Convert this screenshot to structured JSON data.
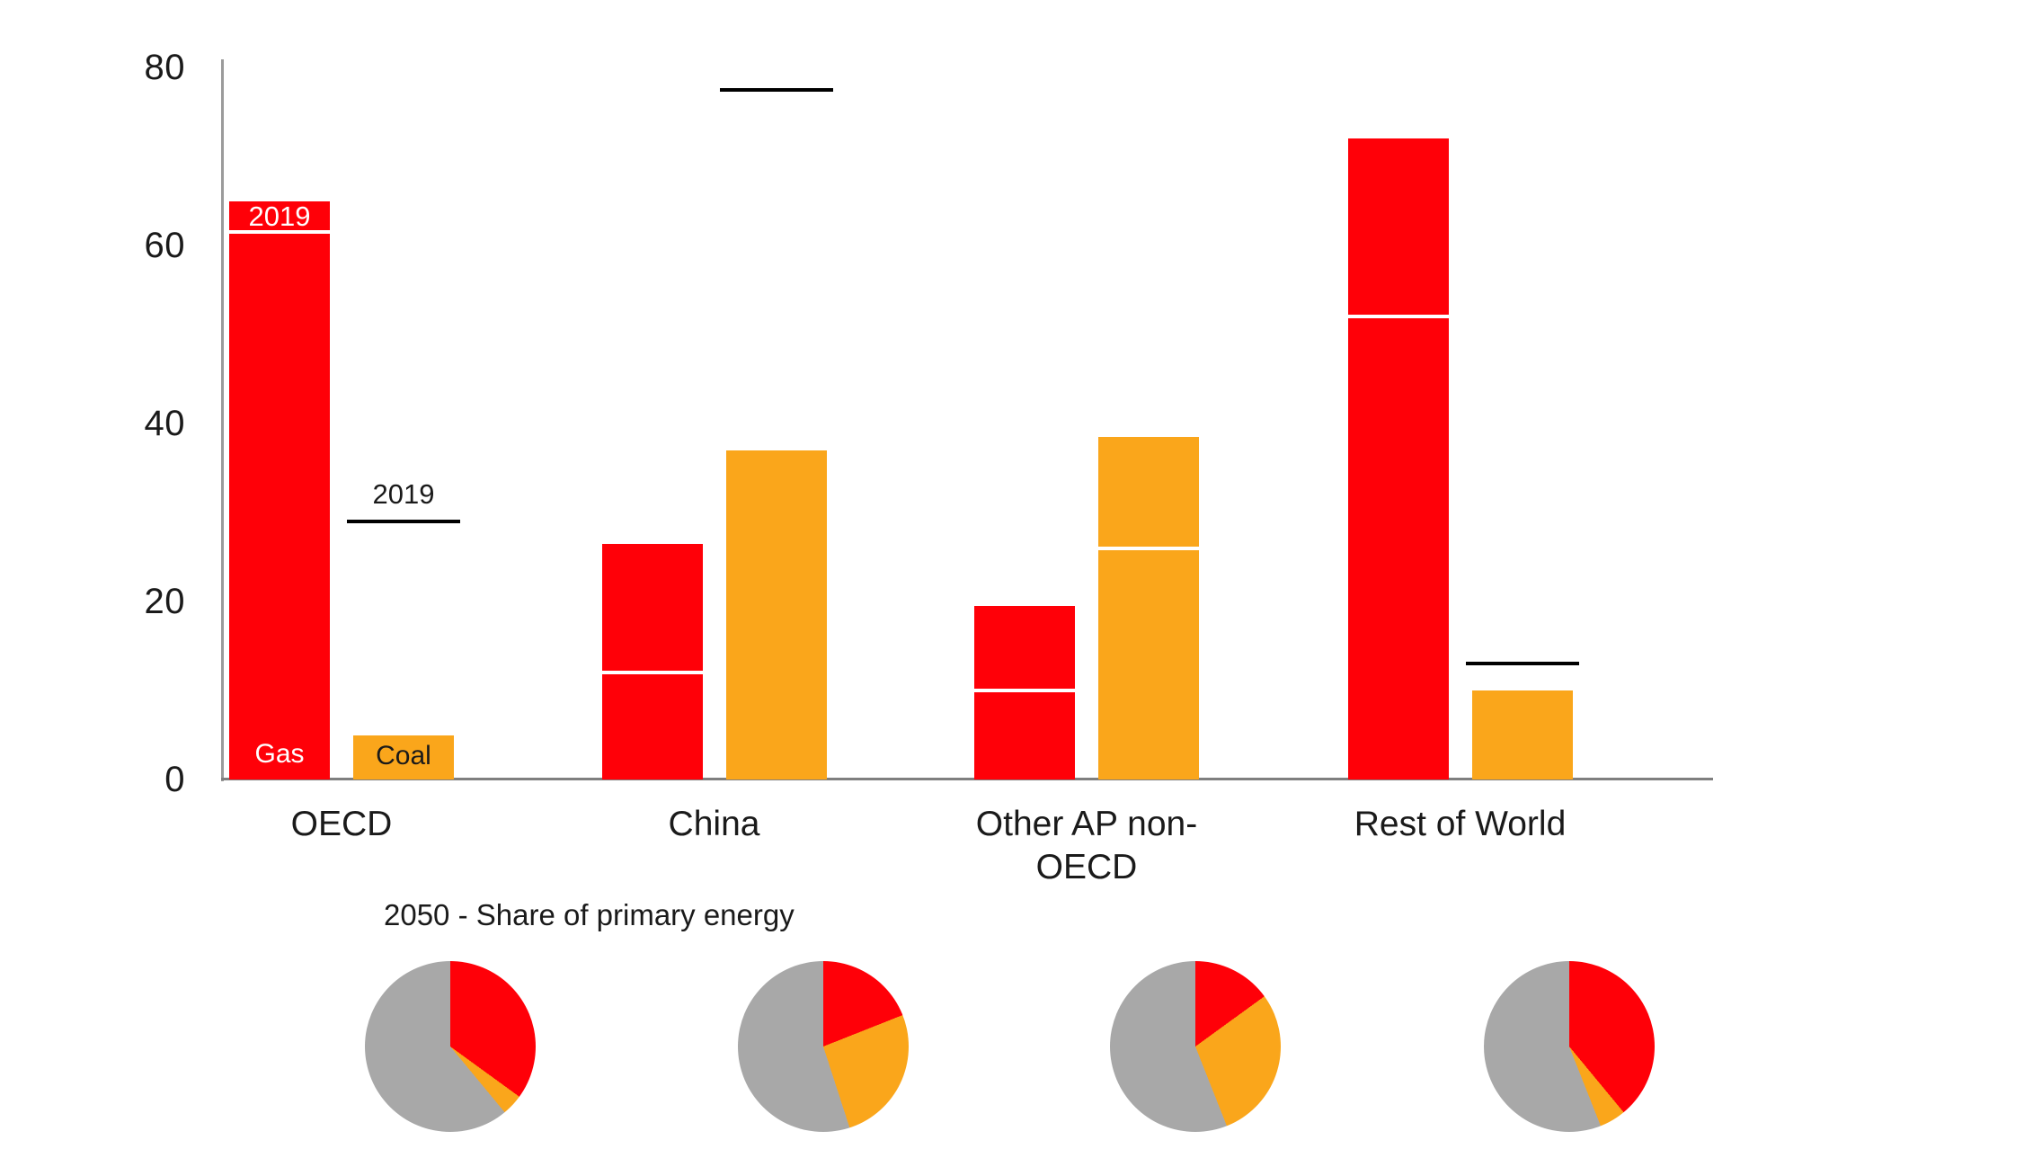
{
  "chart_data": {
    "type": "bar",
    "title": "",
    "ylabel": "",
    "ylim": [
      0,
      80
    ],
    "yticks": [
      80,
      60,
      40,
      20,
      0
    ],
    "grid": false,
    "legend_inline": {
      "gas_label": "Gas",
      "coal_label": "Coal",
      "gas_2019_label": "2019",
      "coal_2019_label": "2019"
    },
    "bar_semantics": "Bars show 2050 level; white line inside bar or black line above bar marks 2019 level",
    "categories": [
      "OECD",
      "China",
      "Other AP non-\nOECD",
      "Rest of World"
    ],
    "series": [
      {
        "name": "Gas",
        "color_key": "gas",
        "values_2050": [
          65,
          26.5,
          19.5,
          72
        ],
        "values_2019": [
          61.5,
          12,
          10,
          52
        ]
      },
      {
        "name": "Coal",
        "color_key": "coal",
        "values_2050": [
          5,
          37,
          38.5,
          10
        ],
        "values_2019": [
          29,
          77.5,
          26,
          13
        ]
      }
    ],
    "pies_title": "2050 - Share of primary energy",
    "pies": [
      {
        "category": "OECD",
        "gas_pct": 35,
        "coal_pct": 4,
        "other_pct": 61
      },
      {
        "category": "China",
        "gas_pct": 19,
        "coal_pct": 26,
        "other_pct": 55
      },
      {
        "category": "Other AP non-OECD",
        "gas_pct": 15,
        "coal_pct": 29,
        "other_pct": 56
      },
      {
        "category": "Rest of World",
        "gas_pct": 39,
        "coal_pct": 5,
        "other_pct": 56
      }
    ],
    "colors": {
      "gas": "#ff0008",
      "coal": "#faa61b",
      "other": "#a8a8a8",
      "axis_vertical": "#9b9b9b",
      "axis_baseline": "#7f7f7f",
      "text": "#1a1a1a",
      "marker_2019_inside": "#ffffff",
      "marker_2019_above": "#000000"
    }
  }
}
